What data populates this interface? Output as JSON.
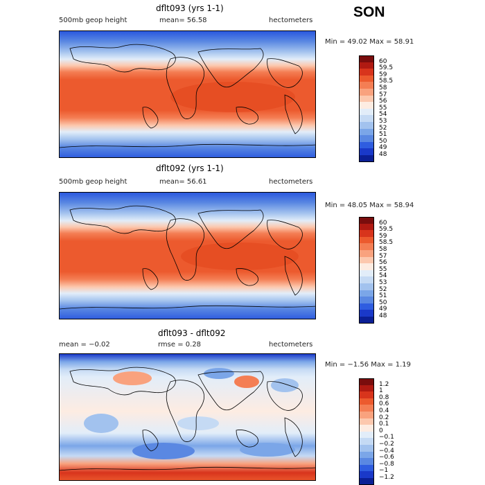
{
  "season": "SON",
  "panels": [
    {
      "id": "top",
      "title": "dflt093 (yrs 1-1)",
      "left_label": "500mb geop height",
      "center_label": "mean=  56.58",
      "right_label": "hectometers",
      "min_max": "Min =  49.02 Max =  58.91",
      "colorbar": {
        "labels": [
          "60",
          "59.5",
          "59",
          "58.5",
          "58",
          "57",
          "56",
          "55",
          "54",
          "53",
          "52",
          "51",
          "50",
          "49",
          "48"
        ],
        "colors": [
          "#7a0d0d",
          "#b01a12",
          "#d8341c",
          "#ec5a2e",
          "#f47e54",
          "#f9a27e",
          "#fcc8ae",
          "#fdece2",
          "#e2edf9",
          "#c5daf4",
          "#a2c2ee",
          "#7ba6e8",
          "#5a88e2",
          "#2f5de0",
          "#1a39c9",
          "#0b1f95"
        ]
      }
    },
    {
      "id": "middle",
      "title": "dflt092 (yrs 1-1)",
      "left_label": "500mb geop height",
      "center_label": "mean=  56.61",
      "right_label": "hectometers",
      "min_max": "Min =  48.05 Max =  58.94",
      "colorbar": {
        "labels": [
          "60",
          "59.5",
          "59",
          "58.5",
          "58",
          "57",
          "56",
          "55",
          "54",
          "53",
          "52",
          "51",
          "50",
          "49",
          "48"
        ],
        "colors": [
          "#7a0d0d",
          "#b01a12",
          "#d8341c",
          "#ec5a2e",
          "#f47e54",
          "#f9a27e",
          "#fcc8ae",
          "#fdece2",
          "#e2edf9",
          "#c5daf4",
          "#a2c2ee",
          "#7ba6e8",
          "#5a88e2",
          "#2f5de0",
          "#1a39c9",
          "#0b1f95"
        ]
      }
    },
    {
      "id": "bottom",
      "title": "dflt093 - dflt092",
      "left_label": "mean =   −0.02",
      "center_label": "rmse =    0.28",
      "right_label": "hectometers",
      "min_max": "Min =  −1.56 Max =    1.19",
      "colorbar": {
        "labels": [
          "1.2",
          "1",
          "0.8",
          "0.6",
          "0.4",
          "0.2",
          "0.1",
          "0",
          "−0.1",
          "−0.2",
          "−0.4",
          "−0.6",
          "−0.8",
          "−1",
          "−1.2"
        ],
        "colors": [
          "#7a0d0d",
          "#b01a12",
          "#d8341c",
          "#ec5a2e",
          "#f47e54",
          "#f9a27e",
          "#fcc8ae",
          "#fdece2",
          "#e2edf9",
          "#c5daf4",
          "#a2c2ee",
          "#7ba6e8",
          "#5a88e2",
          "#2f5de0",
          "#1a39c9",
          "#0b1f95"
        ]
      }
    }
  ]
}
